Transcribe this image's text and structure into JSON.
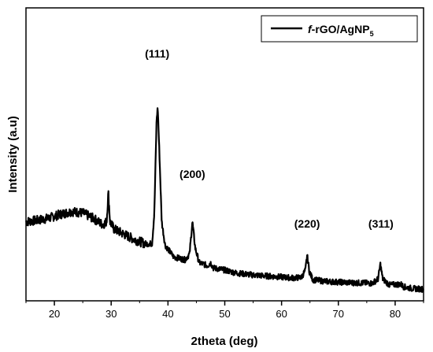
{
  "chart_data": {
    "type": "line",
    "xlabel": "2theta (deg)",
    "ylabel": "Intensity (a.u)",
    "xlim": [
      15,
      85
    ],
    "ylim": [
      0,
      100
    ],
    "x_ticks": [
      20,
      30,
      40,
      50,
      60,
      70,
      80
    ],
    "y_ticks_visible": false,
    "grid": false,
    "legend": {
      "position": "top-right",
      "label_prefix": "f",
      "label_main": "-rGO/AgNP",
      "label_sub": "5"
    },
    "annotations": [
      {
        "text": "(111)",
        "x": 38.1,
        "y": 83
      },
      {
        "text": "(200)",
        "x": 44.3,
        "y": 42
      },
      {
        "text": "(220)",
        "x": 64.5,
        "y": 25
      },
      {
        "text": "(311)",
        "x": 77.5,
        "y": 25
      }
    ],
    "series": [
      {
        "color": "#000000",
        "points": [
          [
            15,
            27
          ],
          [
            17,
            27.5
          ],
          [
            19,
            28.2
          ],
          [
            21,
            29.5
          ],
          [
            23,
            30.5
          ],
          [
            25,
            30
          ],
          [
            27,
            28
          ],
          [
            28.5,
            26
          ],
          [
            29.2,
            27
          ],
          [
            29.5,
            37
          ],
          [
            29.8,
            27
          ],
          [
            30.5,
            24.5
          ],
          [
            32,
            23
          ],
          [
            34,
            21
          ],
          [
            36,
            19.5
          ],
          [
            37.2,
            19.5
          ],
          [
            37.6,
            30
          ],
          [
            38.0,
            62
          ],
          [
            38.2,
            66
          ],
          [
            38.5,
            50
          ],
          [
            38.9,
            27
          ],
          [
            39.5,
            19
          ],
          [
            41,
            15
          ],
          [
            43,
            14
          ],
          [
            43.8,
            16
          ],
          [
            44.3,
            27
          ],
          [
            44.8,
            18
          ],
          [
            45.5,
            13
          ],
          [
            47,
            12
          ],
          [
            47.5,
            13
          ],
          [
            48,
            11.2
          ],
          [
            50,
            10.5
          ],
          [
            52,
            9.5
          ],
          [
            55,
            8.8
          ],
          [
            58,
            8.4
          ],
          [
            62,
            7.8
          ],
          [
            63.5,
            8
          ],
          [
            64.2,
            10.5
          ],
          [
            64.5,
            15.5
          ],
          [
            64.9,
            10
          ],
          [
            65.5,
            7.2
          ],
          [
            68,
            6.6
          ],
          [
            72,
            6.2
          ],
          [
            76,
            6
          ],
          [
            77,
            7.5
          ],
          [
            77.4,
            12.5
          ],
          [
            77.8,
            7.5
          ],
          [
            79,
            5.4
          ],
          [
            81,
            5.7
          ],
          [
            81.5,
            4.8
          ],
          [
            83,
            4.2
          ],
          [
            85,
            4
          ]
        ]
      }
    ]
  }
}
